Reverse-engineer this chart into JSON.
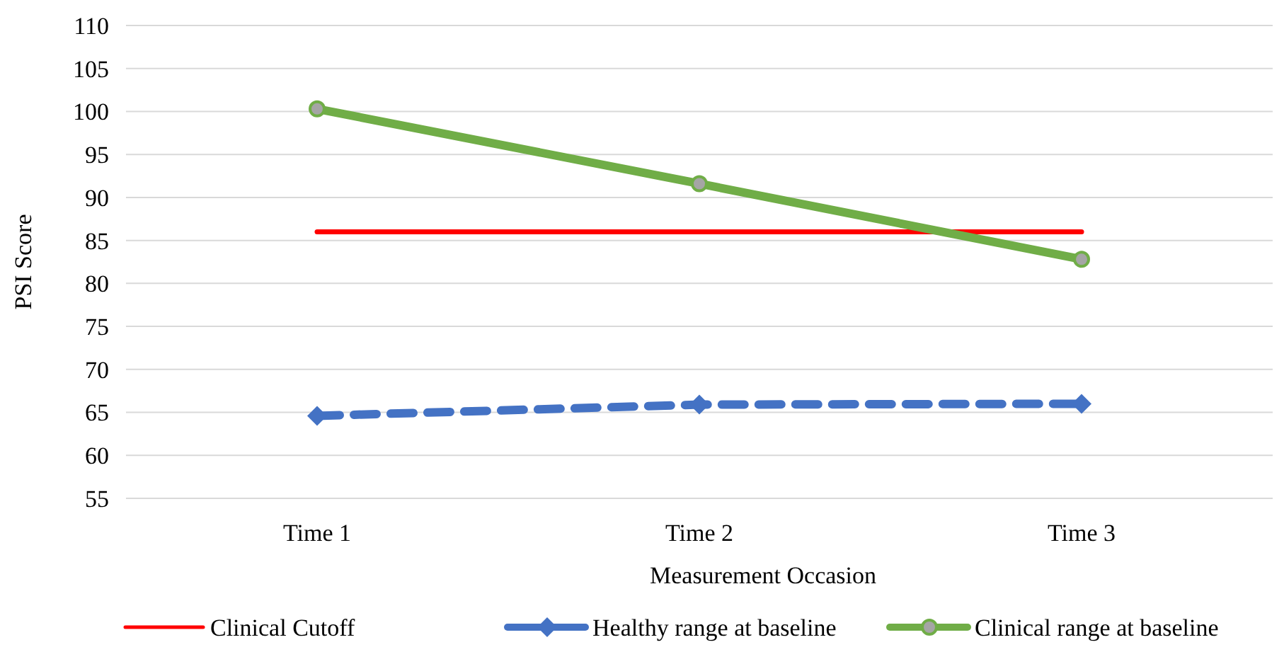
{
  "chart_data": {
    "type": "line",
    "xlabel": "Measurement Occasion",
    "ylabel": "PSI Score",
    "categories": [
      "Time 1",
      "Time 2",
      "Time 3"
    ],
    "series": [
      {
        "name": "Clinical Cutoff",
        "color": "#ff0000",
        "values": [
          86,
          86,
          86
        ],
        "marker": "none",
        "line_style": "solid"
      },
      {
        "name": "Healthy range at baseline",
        "color": "#4472c4",
        "values": [
          64.6,
          65.9,
          66.0
        ],
        "marker": "diamond",
        "line_style": "dashed"
      },
      {
        "name": "Clinical range at baseline",
        "color": "#70ad47",
        "values": [
          100.3,
          91.6,
          82.8
        ],
        "marker": "circle",
        "line_style": "solid"
      }
    ],
    "ylim": [
      55,
      110
    ],
    "yticks": [
      55,
      60,
      65,
      70,
      75,
      80,
      85,
      90,
      95,
      100,
      105,
      110
    ],
    "grid": "y",
    "legend": "bottom"
  }
}
